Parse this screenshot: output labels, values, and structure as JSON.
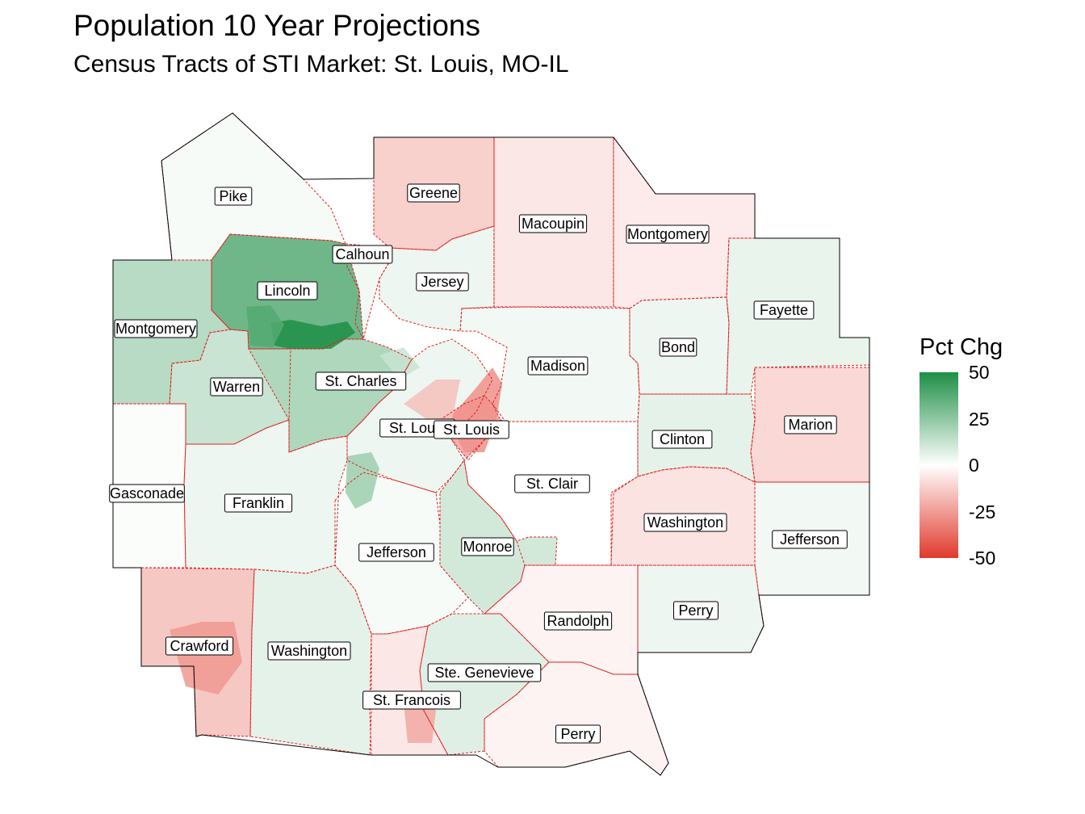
{
  "title": "Population 10 Year Projections",
  "subtitle": "Census Tracts of STI Market: St. Louis, MO-IL",
  "legend": {
    "title": "Pct Chg",
    "ticks": [
      "50",
      "25",
      "0",
      "-25",
      "-50"
    ],
    "colors": {
      "high": "#1e8f46",
      "mid": "#ffffff",
      "low": "#e03a2c"
    },
    "range": [
      -50,
      50
    ]
  },
  "counties": [
    {
      "name": "Pike",
      "value": 2
    },
    {
      "name": "Greene",
      "value": -12
    },
    {
      "name": "Macoupin",
      "value": -6
    },
    {
      "name": "Montgomery",
      "state": "IL",
      "value": -5
    },
    {
      "name": "Calhoun",
      "value": 3
    },
    {
      "name": "Jersey",
      "value": 4
    },
    {
      "name": "Lincoln",
      "value": 32
    },
    {
      "name": "Montgomery",
      "state": "MO",
      "value": 16
    },
    {
      "name": "Fayette",
      "value": 5
    },
    {
      "name": "Bond",
      "value": 4
    },
    {
      "name": "Madison",
      "value": 3
    },
    {
      "name": "Warren",
      "value": 12
    },
    {
      "name": "St. Charles",
      "value": 18
    },
    {
      "name": "St. Louis",
      "state": "MO-county",
      "value": 4
    },
    {
      "name": "St. Louis",
      "state": "MO-city",
      "value": -20
    },
    {
      "name": "Marion",
      "value": -10
    },
    {
      "name": "Clinton",
      "value": 6
    },
    {
      "name": "St. Clair",
      "value": 0
    },
    {
      "name": "Gasconade",
      "value": 1
    },
    {
      "name": "Franklin",
      "value": 4
    },
    {
      "name": "Washington",
      "state": "IL",
      "value": -7
    },
    {
      "name": "Jefferson",
      "state": "IL",
      "value": 3
    },
    {
      "name": "Jefferson",
      "state": "MO",
      "value": 2
    },
    {
      "name": "Monroe",
      "value": 10
    },
    {
      "name": "Randolph",
      "value": -3
    },
    {
      "name": "Perry",
      "state": "IL",
      "value": 4
    },
    {
      "name": "Crawford",
      "value": -14
    },
    {
      "name": "Washington",
      "state": "MO",
      "value": 6
    },
    {
      "name": "Ste. Genevieve",
      "value": 7
    },
    {
      "name": "St. Francois",
      "value": -6
    },
    {
      "name": "Perry",
      "state": "MO",
      "value": -3
    }
  ]
}
